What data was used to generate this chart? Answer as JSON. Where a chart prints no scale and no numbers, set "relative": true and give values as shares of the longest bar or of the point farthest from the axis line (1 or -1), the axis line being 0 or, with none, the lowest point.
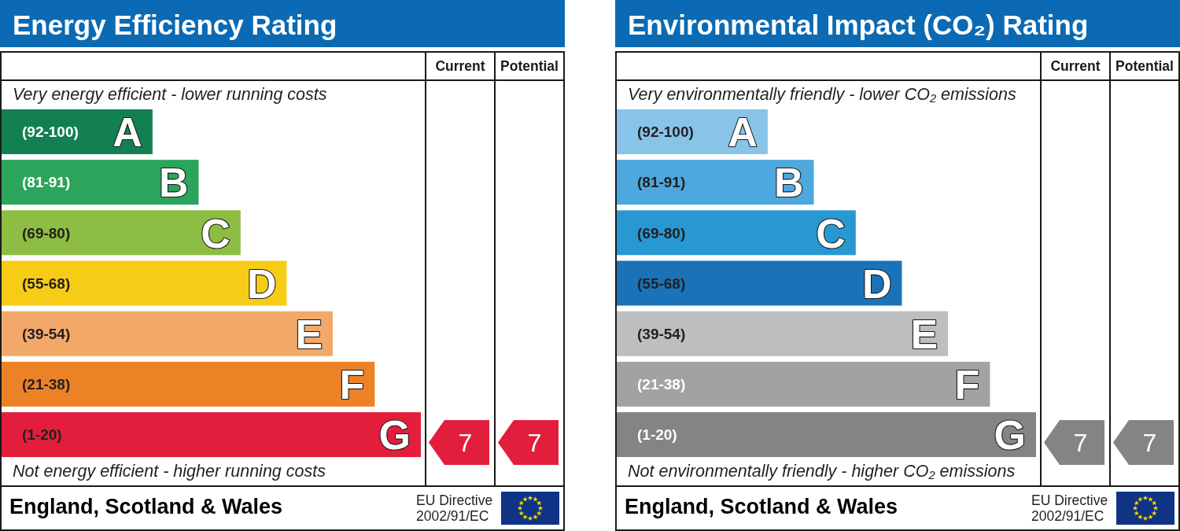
{
  "chart_data": [
    {
      "type": "bar",
      "orientation": "horizontal",
      "relative": true,
      "title": "Energy Efficiency Rating",
      "categories": [
        "A",
        "B",
        "C",
        "D",
        "E",
        "F",
        "G"
      ],
      "values": [
        0.36,
        0.47,
        0.57,
        0.68,
        0.79,
        0.89,
        1
      ],
      "colors": [
        "#138051",
        "#2ba55b",
        "#8dbd42",
        "#f6cc17",
        "#f2a869",
        "#ed8126",
        "#e31e3c"
      ],
      "annotations": [
        "Very energy efficient - lower running costs",
        "Not energy efficient - higher running costs",
        "England, Scotland & Wales",
        "EU Directive",
        "2002/91/EC",
        "(92-100)",
        "(81-91)",
        "(69-80)",
        "(55-68)",
        "(39-54)",
        "(21-38)",
        "(1-20)",
        "Current",
        "Potential",
        "7",
        "7"
      ]
    },
    {
      "type": "bar",
      "orientation": "horizontal",
      "relative": true,
      "title": "Environmental Impact (CO₂) Rating",
      "categories": [
        "A",
        "B",
        "C",
        "D",
        "E",
        "F",
        "G"
      ],
      "values": [
        0.36,
        0.47,
        0.57,
        0.68,
        0.79,
        0.89,
        1
      ],
      "colors": [
        "#87c4e8",
        "#4da9dd",
        "#2898d2",
        "#1a73b8",
        "#bebebe",
        "#a2a2a2",
        "#848484"
      ],
      "annotations": [
        "Very environmentally friendly - lower CO₂ emissions",
        "Not environmentally friendly - higher CO₂ emissions",
        "England, Scotland & Wales",
        "EU Directive",
        "2002/91/EC",
        "(92-100)",
        "(81-91)",
        "(69-80)",
        "(55-68)",
        "(39-54)",
        "(21-38)",
        "(1-20)",
        "Current",
        "Potential",
        "7",
        "7"
      ]
    }
  ]
}
